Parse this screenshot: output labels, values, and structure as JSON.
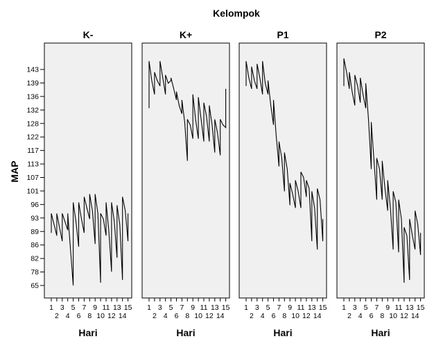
{
  "chart_data": {
    "type": "line",
    "facet_title": "Kelompok",
    "ylabel": "MAP",
    "xlabel": "Hari",
    "ytick_labels": [
      "65",
      "78",
      "82",
      "86",
      "89",
      "93",
      "96",
      "101",
      "107",
      "113",
      "117",
      "122",
      "128",
      "132",
      "136",
      "139",
      "143"
    ],
    "x_odd_labels": [
      "1",
      "3",
      "5",
      "7",
      "9",
      "11",
      "13",
      "15"
    ],
    "x_even_labels": [
      "2",
      "4",
      "6",
      "8",
      "10",
      "12",
      "14"
    ],
    "grid": false,
    "background_color": "#f0f0f0",
    "line_color": "#000000",
    "panels": [
      {
        "name": "K-",
        "x": [
          1,
          1,
          1.5,
          2,
          2,
          2.5,
          3,
          3,
          3.5,
          4,
          4,
          4.5,
          5,
          5,
          5.5,
          6,
          6,
          6.5,
          7,
          7,
          7.5,
          8,
          8,
          8.5,
          9,
          9,
          9.5,
          10,
          10,
          10.5,
          11,
          11,
          11.5,
          12,
          12,
          12.5,
          13,
          13,
          13.5,
          14,
          14,
          14.5,
          15,
          15
        ],
        "y": [
          84,
          91,
          87,
          83,
          91,
          86,
          81,
          91,
          88,
          85,
          91,
          78,
          65,
          95,
          88,
          79,
          95,
          89,
          84,
          97,
          93,
          89,
          98,
          92,
          80,
          98,
          91,
          66,
          91,
          89,
          83,
          95,
          85,
          70,
          95,
          88,
          75,
          94,
          87,
          67,
          97,
          92,
          81,
          91
        ]
      },
      {
        "name": "K+",
        "x": [
          1,
          1,
          1.5,
          2,
          2,
          2.5,
          3,
          3,
          3.5,
          4,
          4,
          4.5,
          5,
          5,
          5.5,
          6,
          6,
          6.5,
          7,
          7,
          7.5,
          8,
          8,
          8.5,
          9,
          9,
          9.5,
          10,
          10,
          10.5,
          11,
          11,
          11.5,
          12,
          12,
          12.5,
          13,
          13,
          13.5,
          14,
          14,
          14.5,
          15,
          15
        ],
        "y": [
          129,
          146,
          139,
          134,
          142,
          139,
          137,
          146,
          140,
          134,
          141,
          138,
          139,
          140,
          136,
          132,
          135,
          130,
          127,
          132,
          124,
          110,
          125,
          123,
          118,
          134,
          125,
          118,
          133,
          125,
          117,
          131,
          126,
          117,
          130,
          123,
          113,
          125,
          120,
          112,
          125,
          123,
          122,
          136
        ]
      },
      {
        "name": "P1",
        "x": [
          1,
          1,
          1.5,
          2,
          2,
          2.5,
          3,
          3,
          3.5,
          4,
          4,
          4.5,
          5,
          5,
          5.5,
          6,
          6,
          6.5,
          7,
          7,
          7.5,
          8,
          8,
          8.5,
          9,
          9,
          9.5,
          10,
          10,
          10.5,
          11,
          11,
          11.5,
          12,
          12,
          12.5,
          13,
          13,
          13.5,
          14,
          14,
          14.5,
          15,
          15
        ],
        "y": [
          137,
          146,
          140,
          136,
          144,
          139,
          136,
          145,
          140,
          134,
          146,
          138,
          134,
          139,
          130,
          123,
          132,
          119,
          108,
          117,
          111,
          99,
          113,
          107,
          94,
          102,
          98,
          93,
          103,
          99,
          93,
          106,
          104,
          97,
          103,
          100,
          81,
          99,
          93,
          78,
          100,
          96,
          81,
          89
        ]
      },
      {
        "name": "P2",
        "x": [
          1,
          1,
          1.5,
          2,
          2,
          2.5,
          3,
          3,
          3.5,
          4,
          4,
          4.5,
          5,
          5,
          5.5,
          6,
          6,
          6.5,
          7,
          7,
          7.5,
          8,
          8,
          8.5,
          9,
          9,
          9.5,
          10,
          10,
          10.5,
          11,
          11,
          11.5,
          12,
          12,
          12.5,
          13,
          13,
          13.5,
          14,
          14,
          14.5,
          15,
          15
        ],
        "y": [
          137,
          147,
          142,
          136,
          142,
          135,
          130,
          141,
          137,
          131,
          140,
          134,
          129,
          138,
          125,
          107,
          124,
          110,
          96,
          111,
          107,
          96,
          110,
          100,
          92,
          103,
          93,
          78,
          99,
          95,
          77,
          96,
          89,
          66,
          86,
          83,
          67,
          89,
          83,
          78,
          92,
          87,
          76,
          84
        ]
      }
    ]
  }
}
